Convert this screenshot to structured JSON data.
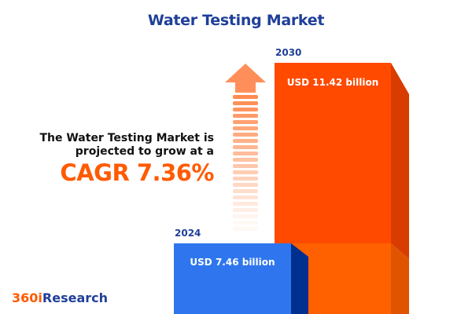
{
  "title": "Water Testing Market",
  "description_line1": "The Water Testing Market is",
  "description_line2": "projected to grow at a",
  "cagr_text": "CAGR 7.36%",
  "logo": {
    "part1": "360i",
    "part2": "Research",
    "color1": "#ff5a00",
    "color2": "#1f3f99"
  },
  "colors": {
    "blue_bar": "#2f76ee",
    "orange_bar": "#ff4a00",
    "title": "#1f3f99",
    "arrow": "#ff8f5a"
  },
  "chart_data": {
    "type": "bar",
    "categories": [
      "2024",
      "2030"
    ],
    "values": [
      7.46,
      11.42
    ],
    "data_labels": [
      "USD 7.46 billion",
      "USD 11.42 billion"
    ],
    "title": "Water Testing Market",
    "unit": "USD billion",
    "cagr": 7.36
  }
}
